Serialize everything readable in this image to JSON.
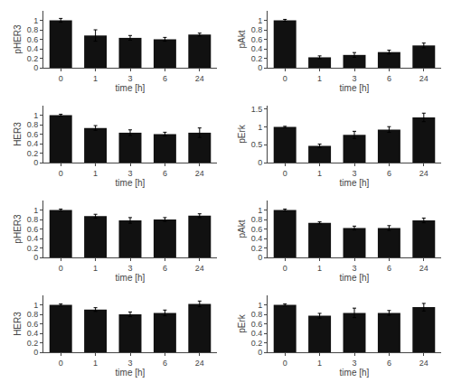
{
  "chart_data": [
    {
      "type": "bar",
      "xlabel": "time [h]",
      "ylabel": "pHER3",
      "categories": [
        "0",
        "1",
        "3",
        "6",
        "24"
      ],
      "values": [
        1.0,
        0.68,
        0.63,
        0.6,
        0.7
      ],
      "errors": [
        0.04,
        0.12,
        0.05,
        0.04,
        0.03
      ],
      "color": "#111111",
      "ylim": [
        0.0,
        1.2
      ],
      "yticks": [
        0,
        0.2,
        0.4,
        0.6,
        0.8,
        1
      ],
      "grid": false
    },
    {
      "type": "bar",
      "xlabel": "time [h]",
      "ylabel": "pAkt",
      "categories": [
        "0",
        "1",
        "3",
        "6",
        "24"
      ],
      "values": [
        1.0,
        0.22,
        0.27,
        0.33,
        0.47
      ],
      "errors": [
        0.02,
        0.03,
        0.05,
        0.04,
        0.05
      ],
      "color": "#111111",
      "ylim": [
        0.0,
        1.2
      ],
      "yticks": [
        0,
        0.2,
        0.4,
        0.6,
        0.8,
        1
      ],
      "grid": false
    },
    {
      "type": "bar",
      "xlabel": "time [h]",
      "ylabel": "HER3",
      "categories": [
        "0",
        "1",
        "3",
        "6",
        "24"
      ],
      "values": [
        1.0,
        0.73,
        0.63,
        0.6,
        0.63
      ],
      "errors": [
        0.02,
        0.05,
        0.06,
        0.04,
        0.1
      ],
      "color": "#111111",
      "ylim": [
        0.0,
        1.2
      ],
      "yticks": [
        0,
        0.2,
        0.4,
        0.6,
        0.8,
        1
      ],
      "grid": false
    },
    {
      "type": "bar",
      "xlabel": "time [h]",
      "ylabel": "pErk",
      "categories": [
        "0",
        "1",
        "3",
        "6",
        "24"
      ],
      "values": [
        1.0,
        0.47,
        0.78,
        0.93,
        1.27
      ],
      "errors": [
        0.02,
        0.05,
        0.1,
        0.08,
        0.12
      ],
      "color": "#111111",
      "ylim": [
        0.0,
        1.6
      ],
      "yticks": [
        0,
        0.5,
        1,
        1.5
      ],
      "grid": false
    },
    {
      "type": "bar",
      "xlabel": "time [h]",
      "ylabel": "pHER3",
      "categories": [
        "0",
        "1",
        "3",
        "6",
        "24"
      ],
      "values": [
        1.0,
        0.87,
        0.78,
        0.8,
        0.88
      ],
      "errors": [
        0.02,
        0.04,
        0.06,
        0.04,
        0.04
      ],
      "color": "#111111",
      "ylim": [
        0.0,
        1.2
      ],
      "yticks": [
        0,
        0.2,
        0.4,
        0.6,
        0.8,
        1
      ],
      "grid": false
    },
    {
      "type": "bar",
      "xlabel": "time [h]",
      "ylabel": "pAkt",
      "categories": [
        "0",
        "1",
        "3",
        "6",
        "24"
      ],
      "values": [
        1.0,
        0.73,
        0.62,
        0.62,
        0.78
      ],
      "errors": [
        0.02,
        0.02,
        0.04,
        0.05,
        0.05
      ],
      "color": "#111111",
      "ylim": [
        0.0,
        1.2
      ],
      "yticks": [
        0,
        0.2,
        0.4,
        0.6,
        0.8,
        1
      ],
      "grid": false
    },
    {
      "type": "bar",
      "xlabel": "time [h]",
      "ylabel": "HER3",
      "categories": [
        "0",
        "1",
        "3",
        "6",
        "24"
      ],
      "values": [
        1.0,
        0.9,
        0.8,
        0.83,
        1.02
      ],
      "errors": [
        0.02,
        0.04,
        0.05,
        0.06,
        0.06
      ],
      "color": "#111111",
      "ylim": [
        0.0,
        1.2
      ],
      "yticks": [
        0,
        0.2,
        0.4,
        0.6,
        0.8,
        1
      ],
      "grid": false
    },
    {
      "type": "bar",
      "xlabel": "time [h]",
      "ylabel": "pErk",
      "categories": [
        "0",
        "1",
        "3",
        "6",
        "24"
      ],
      "values": [
        1.0,
        0.77,
        0.83,
        0.83,
        0.95
      ],
      "errors": [
        0.02,
        0.05,
        0.1,
        0.05,
        0.08
      ],
      "color": "#111111",
      "ylim": [
        0.0,
        1.2
      ],
      "yticks": [
        0,
        0.2,
        0.4,
        0.6,
        0.8,
        1
      ],
      "grid": false
    }
  ]
}
